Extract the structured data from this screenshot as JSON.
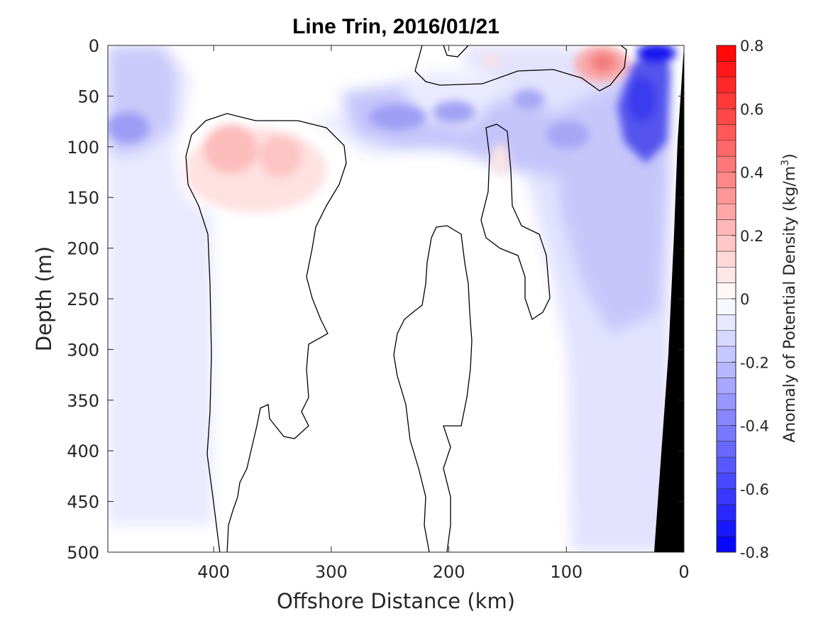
{
  "chart_data": {
    "type": "heatmap",
    "title": "Line Trin, 2016/01/21",
    "xlabel": "Offshore Distance (km)",
    "ylabel": "Depth (m)",
    "xlim": [
      490,
      0
    ],
    "ylim": [
      0,
      500
    ],
    "x_ticks": [
      400,
      300,
      200,
      100,
      0
    ],
    "y_ticks": [
      0,
      50,
      100,
      150,
      200,
      250,
      300,
      350,
      400,
      450,
      500
    ],
    "colorbar": {
      "label": "Anomaly of Potential Density (kg/m",
      "label_superscript": "3",
      "label_suffix": ")",
      "range": [
        -0.8,
        0.8
      ],
      "ticks": [
        "0.8",
        "0.6",
        "0.4",
        "0.2",
        "0",
        "-0.2",
        "-0.4",
        "-0.6",
        "-0.8"
      ],
      "levels": 32,
      "colormap": "blue-white-red"
    },
    "features": [
      {
        "name": "dense-anomaly-offshore",
        "x": 350,
        "depth": 110,
        "value": 0.15
      },
      {
        "name": "dense-anomaly-nearshore",
        "x": 70,
        "depth": 20,
        "value": 0.25
      },
      {
        "name": "light-anomaly-coastal",
        "x": 20,
        "depth": 10,
        "value": -0.6
      },
      {
        "name": "light-anomaly-slope",
        "x": 35,
        "depth": 60,
        "value": -0.45
      },
      {
        "name": "light-anomaly-west",
        "x": 470,
        "depth": 85,
        "value": -0.3
      }
    ],
    "zero_contours": 4,
    "bathymetry": "black shelf wedge at right edge"
  },
  "colors": {
    "positive": "#ff0000",
    "negative": "#0000ff",
    "zero": "#ffffff",
    "bathymetry": "#000000",
    "contour": "#000000"
  }
}
